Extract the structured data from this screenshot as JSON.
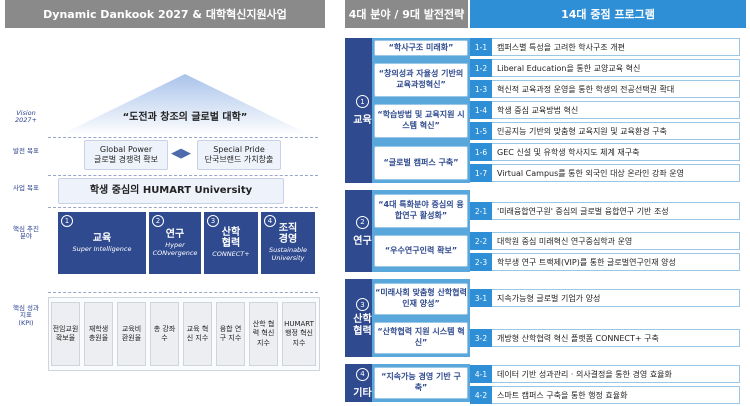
{
  "left": {
    "header": "Dynamic Dankook 2027 & 대학혁신지원사업",
    "dimensions": {
      "vision": "Vision 2027+",
      "goals": "발전 목표",
      "project_goal": "사업 목표",
      "drivers": "핵심 추진 분야",
      "kpi": "핵심 성과 지표 (KPI)"
    },
    "vision": "“도전과 창조의 글로벌 대학”",
    "goals": [
      {
        "line1": "Global Power",
        "line2": "글로벌 경쟁력 확보"
      },
      {
        "line1": "Special Pride",
        "line2": "단국브랜드 가치창출"
      }
    ],
    "project_goal": "학생 중심의 HUMART University",
    "drivers": [
      {
        "num": "1",
        "title": "교육",
        "sub": "Super Intelligence"
      },
      {
        "num": "2",
        "title": "연구",
        "sub": "Hyper CONvergence"
      },
      {
        "num": "3",
        "title": "산학 협력",
        "sub": "CONNECT+"
      },
      {
        "num": "4",
        "title": "조직 경영",
        "sub": "Sustainable University"
      }
    ],
    "kpis": [
      "전임교원 확보율",
      "재학생 충원율",
      "교육비 환원율",
      "총 강좌 수",
      "교육 혁신 지수",
      "융합 연구 지수",
      "산학 협력 혁신 지수",
      "HUMART 행정 혁신 지수"
    ]
  },
  "right": {
    "header_left": "4대 분야 / 9대 발전전략",
    "header_right": "14대 중점 프로그램",
    "areas": [
      {
        "num": "1",
        "label": "교육"
      },
      {
        "num": "2",
        "label": "연구"
      },
      {
        "num": "3",
        "label": "산학 협력"
      },
      {
        "num": "4",
        "label": "기타"
      }
    ],
    "strategies": [
      "“학사구조 미래화”",
      "“창의성과 자율성 기반의 교육과정혁신”",
      "“학습방법 및 교육지원 시스템 혁신”",
      "“글로벌 캠퍼스 구축”",
      "“4대 특화분야 중심의 융합연구 활성화”",
      "“우수연구인력 확보”",
      "“미래사회 맞춤형 산학협력 인재 양성”",
      "“산학협력 지원 시스템 혁신”",
      "“지속가능 경영 기반 구축”"
    ],
    "programs": [
      {
        "num": "1-1",
        "text": "캠퍼스별 특성을 고려한 학사구조 개편"
      },
      {
        "num": "1-2",
        "text": "Liberal Education을 통한 교양교육 혁신"
      },
      {
        "num": "1-3",
        "text": "혁신적 교육과정 운영을 통한 학생의 전공선택권 확대"
      },
      {
        "num": "1-4",
        "text": "학생 중심 교육방법 혁신"
      },
      {
        "num": "1-5",
        "text": "인공지능 기반의 맞춤형 교육지원 및 교육환경 구축"
      },
      {
        "num": "1-6",
        "text": "GEC 신설 및 유학생 학사지도 체계 재구축"
      },
      {
        "num": "1-7",
        "text": "Virtual Campus를 통한 외국인 대상 온라인 강좌 운영"
      },
      {
        "num": "2-1",
        "text": "'미래융합연구원' 중심의 글로벌 융합연구 기반 조성"
      },
      {
        "num": "2-2",
        "text": "대학원 중심 미래혁신 연구중심학과 운영"
      },
      {
        "num": "2-3",
        "text": "학부생 연구 트랙제(VIP)를 통한 글로벌연구인재 양성"
      },
      {
        "num": "3-1",
        "text": "지속가능형 글로벌 기업가 양성"
      },
      {
        "num": "3-2",
        "text": "개방형 산학협력 혁신 플랫폼 CONNECT+ 구축"
      },
      {
        "num": "4-1",
        "text": "데이터 기반 성과관리 · 의사결정을 통한 경영 효율화"
      },
      {
        "num": "4-2",
        "text": "스마트 캠퍼스 구축을 통한 행정 효율화"
      }
    ]
  },
  "colors": {
    "navy": "#2f4a8e",
    "sky": "#5aa7dc",
    "blue": "#2f8fd6",
    "gray_header": "#8a8a8a"
  }
}
